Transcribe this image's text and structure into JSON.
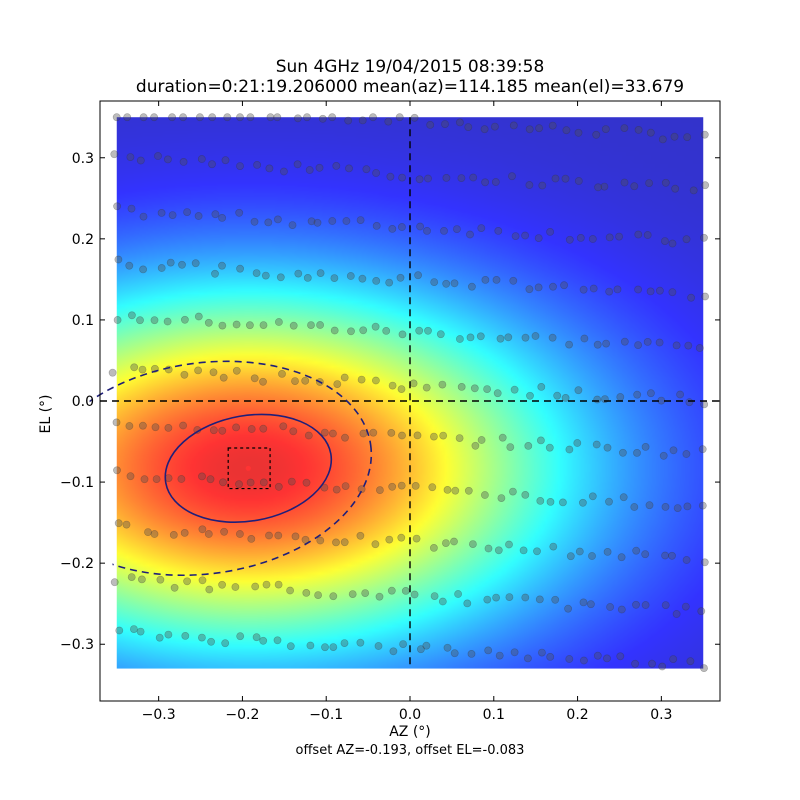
{
  "chart_data": {
    "type": "heatmap",
    "title": "Sun 4GHz 19/04/2015 08:39:58",
    "subtitle": "duration=0:21:19.206000 mean(az)=114.185 mean(el)=33.679",
    "xlabel": "AZ (°)",
    "ylabel": "EL (°)",
    "footnote": "offset AZ=-0.193, offset EL=-0.083",
    "xlim": [
      -0.37,
      0.37
    ],
    "ylim": [
      -0.37,
      0.37
    ],
    "data_extent": {
      "x": [
        -0.35,
        0.35
      ],
      "y": [
        -0.33,
        0.35
      ]
    },
    "x_ticks": [
      -0.3,
      -0.2,
      -0.1,
      0.0,
      0.1,
      0.2,
      0.3
    ],
    "x_tick_labels": [
      "−0.3",
      "−0.2",
      "−0.1",
      "0.0",
      "0.1",
      "0.2",
      "0.3"
    ],
    "y_ticks": [
      0.3,
      0.2,
      0.1,
      0.0,
      -0.1,
      -0.2,
      -0.3
    ],
    "y_tick_labels": [
      "0.3",
      "0.2",
      "0.1",
      "0.0",
      "−0.1",
      "−0.2",
      "−0.3"
    ],
    "colormap": "jet",
    "peak": {
      "az": -0.193,
      "el": -0.083
    },
    "beam_contours": [
      {
        "style": "solid",
        "center": [
          -0.193,
          -0.083
        ],
        "semi_axes": [
          0.1,
          0.065
        ],
        "angle_deg": 10
      },
      {
        "style": "dashed",
        "center": [
          -0.245,
          -0.083
        ],
        "semi_axes": [
          0.2,
          0.13
        ],
        "angle_deg": 8
      }
    ],
    "reference_lines": {
      "az": 0.0,
      "el": 0.0
    },
    "offset_box": {
      "az": [
        -0.217,
        -0.167
      ],
      "el": [
        -0.108,
        -0.058
      ]
    },
    "scan_rows_el": [
      0.345,
      0.28,
      0.215,
      0.15,
      0.085,
      0.02,
      -0.045,
      -0.11,
      -0.175,
      -0.24,
      -0.305
    ],
    "scan_row_tilt": -0.055,
    "colors": {
      "contour": "#1f1f7a",
      "reference_line": "#000000",
      "peak_marker": "#ff3333",
      "samples": "#505050"
    }
  }
}
